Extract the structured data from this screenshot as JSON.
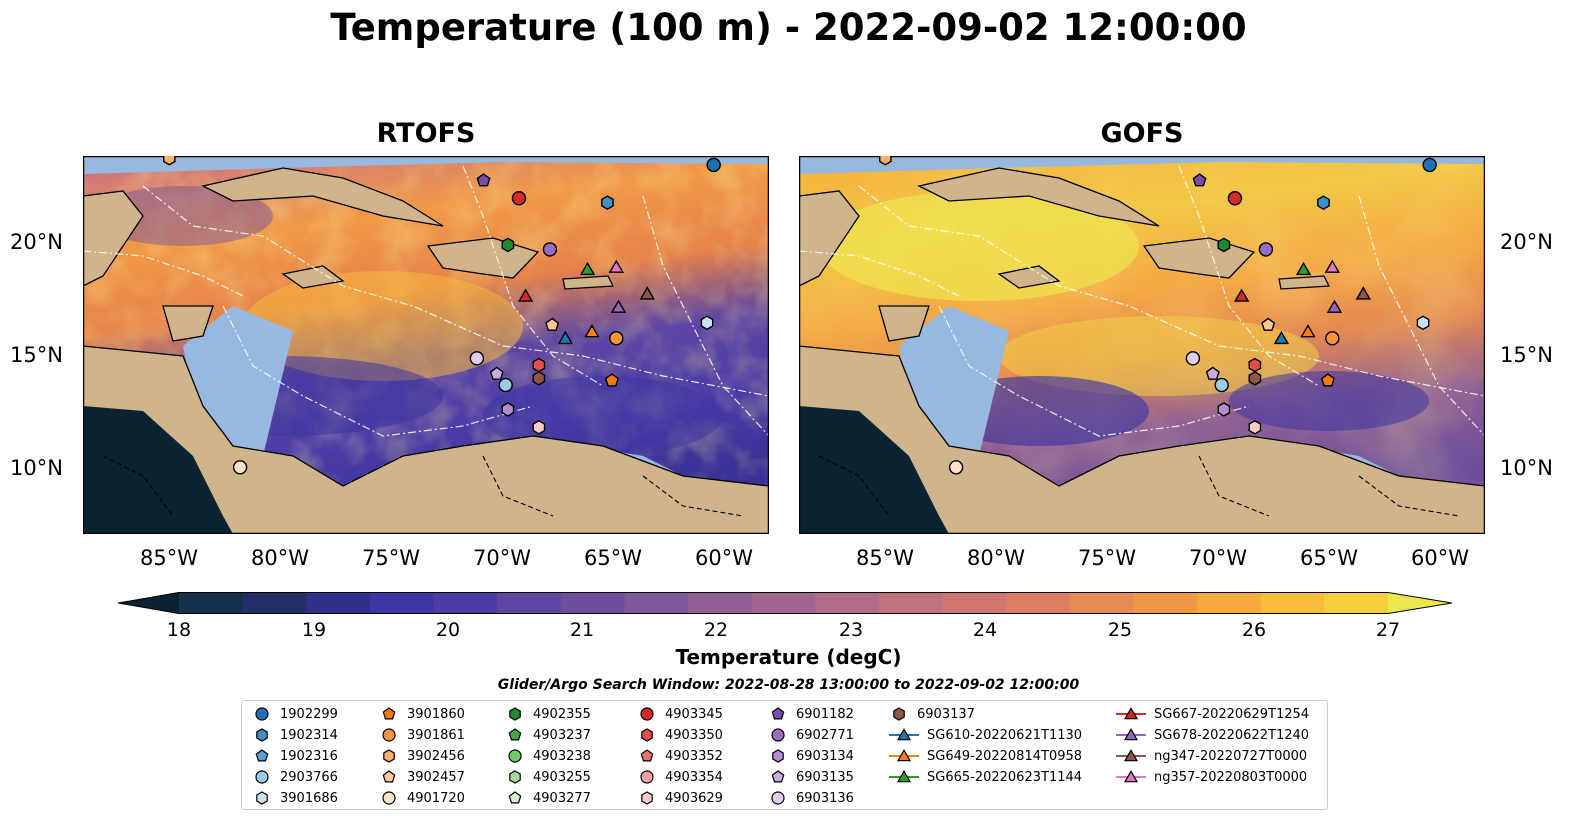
{
  "title": "Temperature (100 m) - 2022-09-02 12:00:00",
  "panels": [
    {
      "title": "RTOFS"
    },
    {
      "title": "GOFS"
    }
  ],
  "axes": {
    "lon_labels": [
      "85°W",
      "80°W",
      "75°W",
      "70°W",
      "65°W",
      "60°W"
    ],
    "lon_values": [
      -85,
      -80,
      -75,
      -70,
      -65,
      -60
    ],
    "lat_labels": [
      "20°N",
      "15°N",
      "10°N"
    ],
    "lat_values": [
      20,
      15,
      10
    ],
    "lon_range": [
      -89,
      -58
    ],
    "lat_range": [
      7,
      24
    ]
  },
  "colorbar": {
    "label": "Temperature (degC)",
    "ticks": [
      "18",
      "19",
      "20",
      "21",
      "22",
      "23",
      "24",
      "25",
      "26",
      "27"
    ],
    "min": 18,
    "max": 27,
    "extend": "both",
    "colors": [
      "#0a2333",
      "#14304a",
      "#232e66",
      "#302f8c",
      "#3d35a3",
      "#4d3ca8",
      "#5e46a3",
      "#6e4f9c",
      "#7e5898",
      "#8f5f94",
      "#a06690",
      "#b06c88",
      "#c0727e",
      "#cf7872",
      "#dc7f64",
      "#e98a52",
      "#f19845",
      "#f6a93c",
      "#f8bb3a",
      "#f6cf3f",
      "#eee64e"
    ]
  },
  "legend": {
    "title": "Glider/Argo Search Window: 2022-08-28 13:00:00 to 2022-09-02 12:00:00",
    "columns": [
      [
        {
          "label": "1902299",
          "marker": "circle",
          "color": "#1f6fb4"
        },
        {
          "label": "1902314",
          "marker": "hexagon",
          "color": "#3f8fc8"
        },
        {
          "label": "1902316",
          "marker": "pentagon",
          "color": "#5aa0d4"
        },
        {
          "label": "2903766",
          "marker": "circle",
          "color": "#9ccbe9"
        },
        {
          "label": "3901686",
          "marker": "hexagon",
          "color": "#c8e2f4"
        }
      ],
      [
        {
          "label": "3901860",
          "marker": "pentagon",
          "color": "#f37a10"
        },
        {
          "label": "3901861",
          "marker": "circle",
          "color": "#f7953c"
        },
        {
          "label": "3902456",
          "marker": "hexagon",
          "color": "#fab06a"
        },
        {
          "label": "3902457",
          "marker": "pentagon",
          "color": "#fcc898"
        },
        {
          "label": "4901720",
          "marker": "circle",
          "color": "#fde3c8"
        }
      ],
      [
        {
          "label": "4902355",
          "marker": "hexagon",
          "color": "#1f8a2c"
        },
        {
          "label": "4903237",
          "marker": "pentagon",
          "color": "#3daa48"
        },
        {
          "label": "4903238",
          "marker": "circle",
          "color": "#70c86a"
        },
        {
          "label": "4903255",
          "marker": "hexagon",
          "color": "#a6dc98"
        },
        {
          "label": "4903277",
          "marker": "pentagon",
          "color": "#d8f0cc"
        }
      ],
      [
        {
          "label": "4903345",
          "marker": "circle",
          "color": "#d62a26"
        },
        {
          "label": "4903350",
          "marker": "hexagon",
          "color": "#e64c48"
        },
        {
          "label": "4903352",
          "marker": "pentagon",
          "color": "#ee7474"
        },
        {
          "label": "4903354",
          "marker": "circle",
          "color": "#f5a0a0"
        },
        {
          "label": "4903629",
          "marker": "hexagon",
          "color": "#fbcaca"
        }
      ],
      [
        {
          "label": "6901182",
          "marker": "pentagon",
          "color": "#7a4ea8"
        },
        {
          "label": "6902771",
          "marker": "circle",
          "color": "#9a6cc0"
        },
        {
          "label": "6903134",
          "marker": "hexagon",
          "color": "#b48cd2"
        },
        {
          "label": "6903135",
          "marker": "pentagon",
          "color": "#ccaae2"
        },
        {
          "label": "6903136",
          "marker": "circle",
          "color": "#e2cdf0"
        }
      ],
      [
        {
          "label": "6903137",
          "marker": "hexagon",
          "color": "#8c564b"
        },
        {
          "label": "SG610-20220621T1130",
          "marker": "triangle",
          "color": "#1f77b4",
          "line": true
        },
        {
          "label": "SG649-20220814T0958",
          "marker": "triangle",
          "color": "#ff7f0e",
          "line": true
        },
        {
          "label": "SG665-20220623T1144",
          "marker": "triangle",
          "color": "#2ca02c",
          "line": true
        }
      ],
      [
        {
          "label": "SG667-20220629T1254",
          "marker": "triangle",
          "color": "#d62728",
          "line": true
        },
        {
          "label": "SG678-20220622T1240",
          "marker": "triangle",
          "color": "#9467bd",
          "line": true
        },
        {
          "label": "ng347-20220727T0000",
          "marker": "triangle",
          "color": "#8c564b",
          "line": true
        },
        {
          "label": "ng357-20220803T0000",
          "marker": "triangle",
          "color": "#e377c2",
          "line": true
        }
      ]
    ]
  },
  "markers": [
    {
      "id": "1902299",
      "lon": -60.5,
      "lat": 23.6
    },
    {
      "id": "1902314",
      "lon": -65.3,
      "lat": 21.9
    },
    {
      "id": "4902355",
      "lon": -69.8,
      "lat": 20.0
    },
    {
      "id": "4903345",
      "lon": -69.3,
      "lat": 22.1
    },
    {
      "id": "6901182",
      "lon": -70.9,
      "lat": 22.9
    },
    {
      "id": "6902771",
      "lon": -67.9,
      "lat": 19.8
    },
    {
      "id": "SG665-20220623T1144",
      "lon": -66.2,
      "lat": 18.9
    },
    {
      "id": "ng357-20220803T0000",
      "lon": -64.9,
      "lat": 19.0
    },
    {
      "id": "SG667-20220629T1254",
      "lon": -69.0,
      "lat": 17.7
    },
    {
      "id": "ng347-20220727T0000",
      "lon": -63.5,
      "lat": 17.8
    },
    {
      "id": "SG678-20220622T1240",
      "lon": -64.8,
      "lat": 17.2
    },
    {
      "id": "3902457",
      "lon": -67.8,
      "lat": 16.4
    },
    {
      "id": "SG649-20220814T0958",
      "lon": -66.0,
      "lat": 16.1
    },
    {
      "id": "SG610-20220621T1130",
      "lon": -67.2,
      "lat": 15.8
    },
    {
      "id": "3901861",
      "lon": -64.9,
      "lat": 15.8
    },
    {
      "id": "3901686",
      "lon": -60.8,
      "lat": 16.5
    },
    {
      "id": "6903136",
      "lon": -71.2,
      "lat": 14.9
    },
    {
      "id": "4903350",
      "lon": -68.4,
      "lat": 14.6
    },
    {
      "id": "6903135",
      "lon": -70.3,
      "lat": 14.2
    },
    {
      "id": "6903137",
      "lon": -68.4,
      "lat": 14.0
    },
    {
      "id": "2903766",
      "lon": -69.9,
      "lat": 13.7
    },
    {
      "id": "3901860",
      "lon": -65.1,
      "lat": 13.9
    },
    {
      "id": "6903134",
      "lon": -69.8,
      "lat": 12.6
    },
    {
      "id": "4903629",
      "lon": -68.4,
      "lat": 11.8
    },
    {
      "id": "4901720",
      "lon": -81.9,
      "lat": 10.0
    },
    {
      "id": "3902456",
      "lon": -85.1,
      "lat": 23.9
    }
  ]
}
